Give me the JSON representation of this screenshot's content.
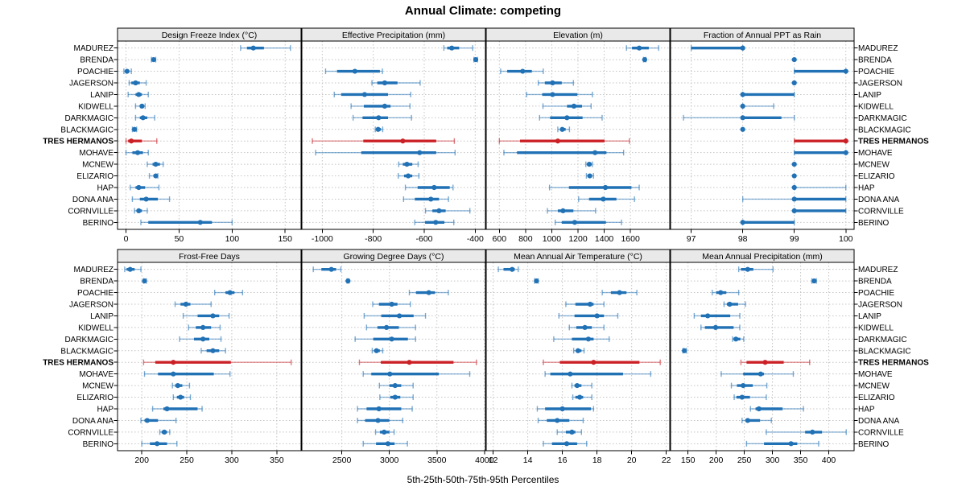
{
  "title": "Annual Climate: competing",
  "caption": "5th-25th-50th-75th-95th Percentiles",
  "chart_data": {
    "type": "trellis_percentile_dotplot",
    "title": "Annual Climate: competing",
    "caption": "5th-25th-50th-75th-95th Percentiles",
    "percentiles": [
      5,
      25,
      50,
      75,
      95
    ],
    "legend_position": "none",
    "grid": "dotted",
    "sites": [
      "MADUREZ",
      "BRENDA",
      "POACHIE",
      "JAGERSON",
      "LANIP",
      "KIDWELL",
      "DARKMAGIC",
      "BLACKMAGIC",
      "TRES HERMANOS",
      "MOHAVE",
      "MCNEW",
      "ELIZARIO",
      "HAP",
      "DONA ANA",
      "CORNVILLE",
      "BERINO"
    ],
    "highlight_site": "TRES HERMANOS",
    "colors": {
      "series": "#2171b5",
      "highlight": "#cb2026",
      "strip_bg": "#e9e9e9",
      "panel_border": "#000000",
      "gridline": "#c4c4c4",
      "text": "#000000"
    },
    "layout_hint": {
      "rows": 2,
      "cols": 4
    },
    "panels": [
      {
        "title": "Design Freeze Index (°C)",
        "ticks": [
          0,
          50,
          100,
          150
        ],
        "range": [
          -8,
          165
        ],
        "values": [
          [
            108,
            114,
            120,
            130,
            155
          ],
          [
            24,
            25,
            26,
            27,
            28
          ],
          [
            -2,
            0,
            1,
            3,
            5
          ],
          [
            3,
            5,
            9,
            13,
            19
          ],
          [
            2,
            9,
            12,
            15,
            21
          ],
          [
            9,
            13,
            15,
            17,
            18
          ],
          [
            9,
            13,
            16,
            20,
            27
          ],
          [
            6,
            7,
            8,
            9,
            10
          ],
          [
            0,
            2,
            5,
            15,
            29
          ],
          [
            0,
            6,
            11,
            16,
            21
          ],
          [
            20,
            25,
            28,
            32,
            35
          ],
          [
            22,
            26,
            28,
            29,
            30
          ],
          [
            4,
            9,
            12,
            18,
            31
          ],
          [
            6,
            13,
            19,
            30,
            41
          ],
          [
            8,
            10,
            12,
            15,
            20
          ],
          [
            14,
            21,
            70,
            81,
            100
          ]
        ]
      },
      {
        "title": "Effective Precipitation (mm)",
        "ticks": [
          -1000,
          -800,
          -600,
          -400
        ],
        "range": [
          -1080,
          -360
        ],
        "values": [
          [
            -523,
            -510,
            -492,
            -463,
            -410
          ],
          [
            -405,
            -401,
            -398,
            -395,
            -391
          ],
          [
            -987,
            -942,
            -872,
            -774,
            -764
          ],
          [
            -805,
            -784,
            -755,
            -705,
            -616
          ],
          [
            -953,
            -926,
            -834,
            -742,
            -653
          ],
          [
            -887,
            -837,
            -755,
            -732,
            -656
          ],
          [
            -879,
            -842,
            -779,
            -742,
            -650
          ],
          [
            -792,
            -786,
            -781,
            -770,
            -763
          ],
          [
            -1039,
            -839,
            -684,
            -553,
            -482
          ],
          [
            -1026,
            -847,
            -618,
            -553,
            -479
          ],
          [
            -700,
            -684,
            -668,
            -647,
            -624
          ],
          [
            -702,
            -679,
            -663,
            -647,
            -621
          ],
          [
            -674,
            -626,
            -561,
            -500,
            -487
          ],
          [
            -681,
            -637,
            -574,
            -542,
            -505
          ],
          [
            -595,
            -568,
            -542,
            -516,
            -421
          ],
          [
            -637,
            -597,
            -555,
            -521,
            -484
          ]
        ]
      },
      {
        "title": "Elevation (m)",
        "ticks": [
          600,
          800,
          1000,
          1200,
          1400,
          1600
        ],
        "range": [
          500,
          1900
        ],
        "values": [
          [
            1570,
            1612,
            1667,
            1740,
            1815
          ],
          [
            1700,
            1704,
            1709,
            1714,
            1718
          ],
          [
            610,
            660,
            778,
            848,
            935
          ],
          [
            897,
            947,
            1006,
            1076,
            1165
          ],
          [
            808,
            927,
            1006,
            1195,
            1310
          ],
          [
            933,
            1116,
            1169,
            1231,
            1300
          ],
          [
            907,
            987,
            1116,
            1235,
            1384
          ],
          [
            1046,
            1066,
            1080,
            1106,
            1135
          ],
          [
            600,
            758,
            1046,
            1403,
            1592
          ],
          [
            635,
            735,
            1330,
            1417,
            1548
          ],
          [
            1260,
            1270,
            1286,
            1300,
            1310
          ],
          [
            1264,
            1274,
            1290,
            1304,
            1318
          ],
          [
            983,
            1131,
            1409,
            1608,
            1667
          ],
          [
            1205,
            1284,
            1393,
            1493,
            1631
          ],
          [
            967,
            1046,
            1086,
            1165,
            1334
          ],
          [
            1026,
            1076,
            1175,
            1413,
            1532
          ]
        ]
      },
      {
        "title": "Fraction of Annual PPT as Rain",
        "ticks": [
          97,
          98,
          99,
          100
        ],
        "range": [
          96.6,
          100.16
        ],
        "values": [
          [
            97,
            97,
            98,
            98,
            98
          ],
          [
            99,
            99,
            99,
            99,
            99
          ],
          [
            99,
            99,
            100,
            100,
            100
          ],
          [
            99,
            99,
            99,
            99,
            99
          ],
          [
            98,
            98,
            98,
            99,
            99
          ],
          [
            98,
            98,
            98,
            98,
            98.6
          ],
          [
            96.85,
            98,
            98,
            98.75,
            99
          ],
          [
            98,
            98,
            98,
            98,
            98
          ],
          [
            99,
            99,
            100,
            100,
            100
          ],
          [
            99,
            99,
            100,
            100,
            100
          ],
          [
            99,
            99,
            99,
            99,
            99
          ],
          [
            99,
            99,
            99,
            99,
            99
          ],
          [
            99,
            99,
            99,
            99,
            100
          ],
          [
            98,
            99,
            99,
            100,
            100
          ],
          [
            99,
            99,
            99,
            100,
            100
          ],
          [
            98,
            98,
            98,
            99,
            99
          ]
        ]
      },
      {
        "title": "Frost-Free Days",
        "ticks": [
          200,
          250,
          300,
          350
        ],
        "range": [
          173,
          377
        ],
        "values": [
          [
            181,
            183,
            187,
            192,
            199
          ],
          [
            202,
            203,
            203,
            204,
            205
          ],
          [
            281,
            293,
            298,
            303,
            312
          ],
          [
            237,
            243,
            249,
            254,
            277
          ],
          [
            246,
            262,
            279,
            286,
            297
          ],
          [
            252,
            260,
            268,
            277,
            287
          ],
          [
            242,
            258,
            268,
            275,
            288
          ],
          [
            266,
            272,
            279,
            286,
            293
          ],
          [
            202,
            215,
            235,
            299,
            366
          ],
          [
            203,
            218,
            235,
            280,
            298
          ],
          [
            234,
            237,
            240,
            245,
            253
          ],
          [
            235,
            239,
            243,
            247,
            254
          ],
          [
            212,
            224,
            228,
            262,
            267
          ],
          [
            199,
            203,
            206,
            218,
            238
          ],
          [
            220,
            222,
            225,
            228,
            231
          ],
          [
            200,
            209,
            217,
            228,
            239
          ]
        ]
      },
      {
        "title": "Growing Degree Days (°C)",
        "ticks": [
          2500,
          3000,
          3500,
          4000
        ],
        "range": [
          2080,
          4010
        ],
        "values": [
          [
            2200,
            2285,
            2390,
            2440,
            2490
          ],
          [
            2555,
            2560,
            2565,
            2570,
            2575
          ],
          [
            3210,
            3280,
            3415,
            3480,
            3620
          ],
          [
            2825,
            2890,
            3025,
            3085,
            3220
          ],
          [
            2735,
            2915,
            3105,
            3255,
            3380
          ],
          [
            2760,
            2875,
            2970,
            3100,
            3275
          ],
          [
            2640,
            2830,
            3025,
            3195,
            3275
          ],
          [
            2820,
            2840,
            2865,
            2900,
            2930
          ],
          [
            2685,
            2910,
            3210,
            3675,
            3915
          ],
          [
            2725,
            2810,
            3005,
            3520,
            3845
          ],
          [
            2895,
            3000,
            3060,
            3125,
            3250
          ],
          [
            2900,
            3010,
            3060,
            3115,
            3250
          ],
          [
            2665,
            2760,
            2890,
            3125,
            3240
          ],
          [
            2665,
            2745,
            2880,
            3000,
            3140
          ],
          [
            2855,
            2900,
            2945,
            3000,
            3050
          ],
          [
            2725,
            2860,
            2985,
            3055,
            3190
          ]
        ]
      },
      {
        "title": "Mean Annual Air Temperature (°C)",
        "ticks": [
          12,
          14,
          16,
          18,
          20,
          22
        ],
        "range": [
          11.6,
          22.2
        ],
        "values": [
          [
            12.3,
            12.6,
            13.1,
            13.25,
            13.45
          ],
          [
            14.4,
            14.45,
            14.5,
            14.55,
            14.6
          ],
          [
            18.3,
            18.8,
            19.3,
            19.7,
            20.3
          ],
          [
            16.2,
            16.75,
            17.6,
            17.8,
            18.4
          ],
          [
            15.8,
            16.7,
            18.0,
            18.4,
            19.2
          ],
          [
            16.4,
            16.8,
            17.3,
            17.7,
            18.4
          ],
          [
            15.5,
            16.55,
            17.5,
            17.8,
            18.7
          ],
          [
            16.65,
            16.8,
            16.9,
            17.1,
            17.25
          ],
          [
            14.9,
            15.85,
            17.8,
            20.45,
            21.65
          ],
          [
            15.0,
            15.3,
            16.45,
            19.5,
            21.1
          ],
          [
            16.55,
            16.7,
            16.85,
            17.1,
            17.7
          ],
          [
            16.6,
            16.75,
            17.0,
            17.2,
            17.7
          ],
          [
            14.55,
            15.0,
            16.0,
            17.65,
            17.8
          ],
          [
            14.6,
            15.1,
            15.7,
            16.4,
            17.2
          ],
          [
            15.7,
            16.2,
            16.55,
            16.75,
            17.1
          ],
          [
            14.9,
            15.4,
            16.25,
            16.85,
            17.4
          ]
        ]
      },
      {
        "title": "Mean Annual Precipitation (mm)",
        "ticks": [
          150,
          200,
          250,
          300,
          350,
          400
        ],
        "range": [
          119,
          445
        ],
        "values": [
          [
            240,
            244,
            256,
            266,
            301
          ],
          [
            370,
            372,
            374,
            376,
            378
          ],
          [
            193,
            200,
            208,
            218,
            240
          ],
          [
            214,
            219,
            224,
            239,
            252
          ],
          [
            161,
            173,
            185,
            225,
            242
          ],
          [
            173,
            180,
            199,
            231,
            242
          ],
          [
            229,
            231,
            235,
            243,
            249
          ],
          [
            141,
            142,
            143.5,
            145,
            147
          ],
          [
            244,
            254,
            287,
            320,
            366
          ],
          [
            209,
            248,
            279,
            285,
            337
          ],
          [
            227,
            237,
            248,
            265,
            290
          ],
          [
            232,
            236,
            246,
            260,
            289
          ],
          [
            261,
            270,
            276,
            318,
            355
          ],
          [
            246,
            252,
            256,
            278,
            298
          ],
          [
            289,
            358,
            371,
            388,
            431
          ],
          [
            254,
            285,
            333,
            344,
            382
          ]
        ]
      }
    ]
  }
}
